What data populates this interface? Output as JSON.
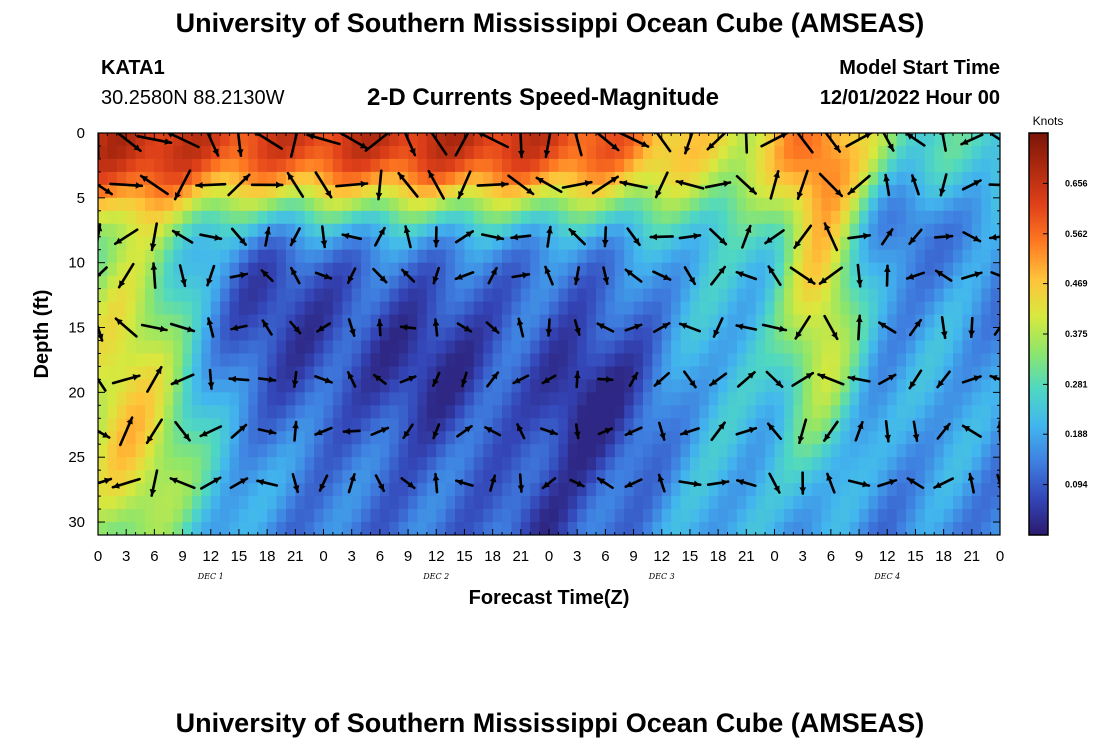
{
  "page_title": "University of Southern Mississippi Ocean Cube (AMSEAS)",
  "footer_title": "University of Southern Mississippi Ocean Cube (AMSEAS)",
  "station": {
    "name": "KATA1",
    "coords": "30.2580N  88.2130W"
  },
  "model_start": {
    "label": "Model Start Time",
    "value": "12/01/2022 Hour 00"
  },
  "chart_data": {
    "type": "heatmap",
    "title": "2-D Currents Speed-Magnitude",
    "xlabel": "Forecast Time(Z)",
    "ylabel": "Depth (ft)",
    "x_tick_labels": [
      "0",
      "3",
      "6",
      "9",
      "12",
      "15",
      "18",
      "21",
      "0",
      "3",
      "6",
      "9",
      "12",
      "15",
      "18",
      "21",
      "0",
      "3",
      "6",
      "9",
      "12",
      "15",
      "18",
      "21",
      "0",
      "3",
      "6",
      "9",
      "12",
      "15",
      "18",
      "21",
      "0"
    ],
    "x_range_hours": [
      0,
      96
    ],
    "day_labels": [
      {
        "label": "DEC 1",
        "hour": 12
      },
      {
        "label": "DEC 2",
        "hour": 36
      },
      {
        "label": "DEC 3",
        "hour": 60
      },
      {
        "label": "DEC 4",
        "hour": 84
      }
    ],
    "y_ticks": [
      "0",
      "5",
      "10",
      "15",
      "20",
      "25",
      "30"
    ],
    "ylim_ft": [
      0,
      31
    ],
    "y_inverted": true,
    "colorbar": {
      "unit": "Knots",
      "ticks": [
        "0.094",
        "0.188",
        "0.281",
        "0.375",
        "0.469",
        "0.562",
        "0.656"
      ],
      "range": [
        0.0,
        0.75
      ],
      "colors": [
        "#2b1a6e",
        "#3446b8",
        "#3f7fe0",
        "#42b6ee",
        "#4fd8c2",
        "#8ee66a",
        "#d8e83e",
        "#ffc43a",
        "#ff7a22",
        "#e2421a",
        "#b02a10",
        "#7a1508"
      ]
    },
    "grid": false,
    "arrows": true
  }
}
